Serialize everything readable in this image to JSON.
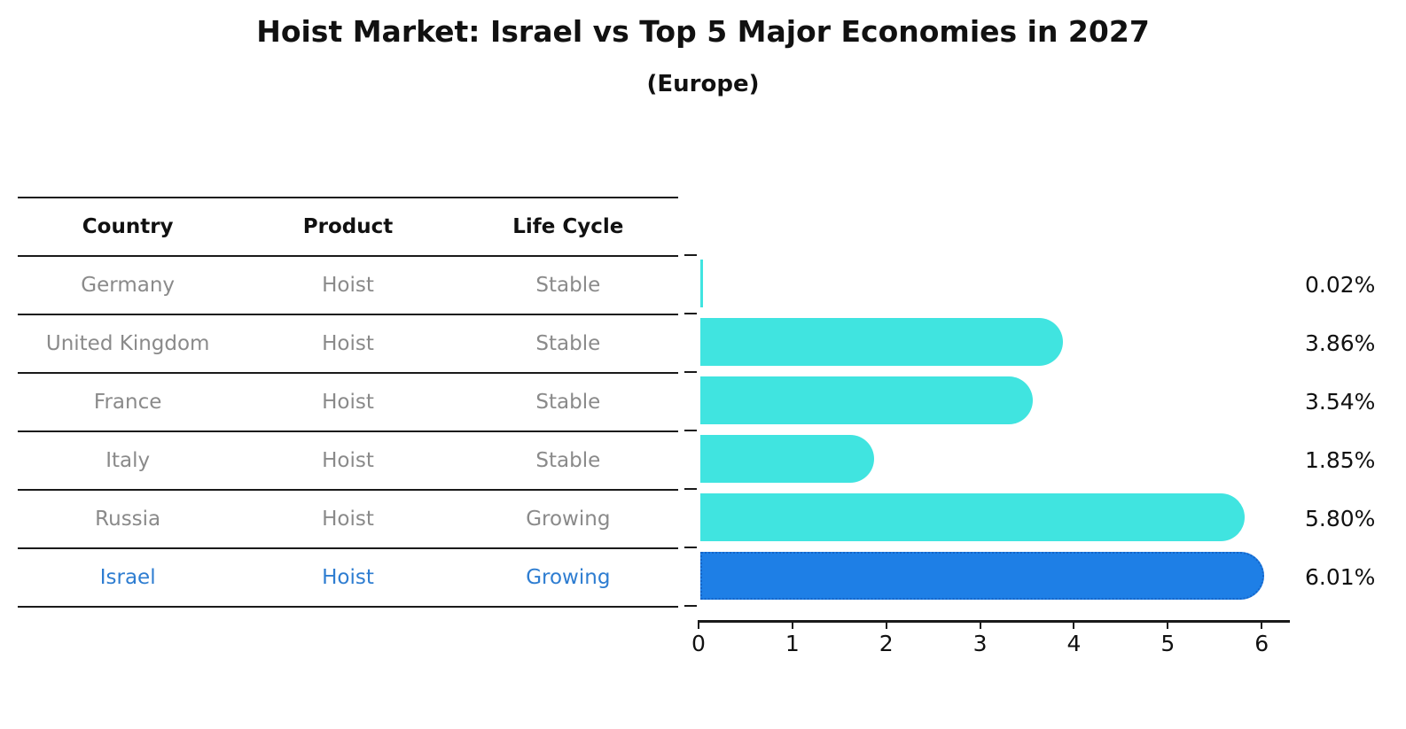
{
  "title": "Hoist Market: Israel vs Top 5 Major Economies in 2027",
  "subtitle": "(Europe)",
  "table": {
    "headers": [
      "Country",
      "Product",
      "Life Cycle"
    ],
    "rows": [
      {
        "country": "Germany",
        "product": "Hoist",
        "life_cycle": "Stable",
        "highlight": false
      },
      {
        "country": "United Kingdom",
        "product": "Hoist",
        "life_cycle": "Stable",
        "highlight": false
      },
      {
        "country": "France",
        "product": "Hoist",
        "life_cycle": "Stable",
        "highlight": false
      },
      {
        "country": "Italy",
        "product": "Hoist",
        "life_cycle": "Stable",
        "highlight": false
      },
      {
        "country": "Russia",
        "product": "Hoist",
        "life_cycle": "Growing",
        "highlight": false
      },
      {
        "country": "Israel",
        "product": "Hoist",
        "life_cycle": "Growing",
        "highlight": true
      }
    ]
  },
  "chart_data": {
    "type": "bar",
    "orientation": "horizontal",
    "title": "Hoist Market: Israel vs Top 5 Major Economies in 2027 (Europe)",
    "categories": [
      "Germany",
      "United Kingdom",
      "France",
      "Italy",
      "Russia",
      "Israel"
    ],
    "values": [
      0.02,
      3.86,
      3.54,
      1.85,
      5.8,
      6.01
    ],
    "value_labels": [
      "0.02%",
      "3.86%",
      "3.54%",
      "1.85%",
      "5.80%",
      "6.01%"
    ],
    "xlabel": "",
    "ylabel": "",
    "xlim": [
      0,
      6.3
    ],
    "xticks": [
      0,
      1,
      2,
      3,
      4,
      5,
      6
    ],
    "grid": "off",
    "legend": "none",
    "highlight_index": 5
  },
  "colors": {
    "bar": "#40e4e0",
    "highlight_bar": "#1e7fe6",
    "highlight_text": "#2e7dd1",
    "table_text": "#8a8a8a",
    "heading_text": "#111111"
  }
}
